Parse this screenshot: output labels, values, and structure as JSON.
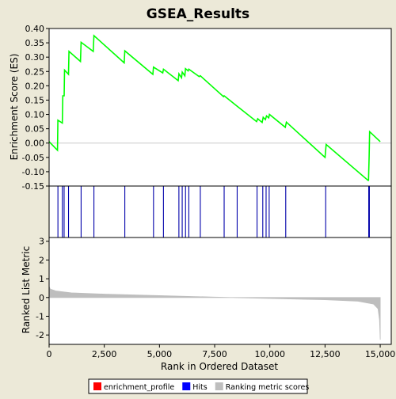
{
  "chart_data": {
    "type": "line",
    "title": "GSEA_Results",
    "xlabel": "Rank in Ordered Dataset",
    "xlim": [
      0,
      15500
    ],
    "xticks": [
      0,
      2500,
      5000,
      7500,
      10000,
      12500,
      15000
    ],
    "xtick_labels": [
      "0",
      "2,500",
      "5,000",
      "7,500",
      "10,000",
      "12,500",
      "15,000"
    ],
    "panels": {
      "enrichment": {
        "ylabel": "Enrichment Score (ES)",
        "ylim": [
          -0.15,
          0.4
        ],
        "yticks": [
          -0.15,
          -0.1,
          -0.05,
          0.0,
          0.05,
          0.1,
          0.15,
          0.2,
          0.25,
          0.3,
          0.35,
          0.4
        ],
        "ytick_labels": [
          "-0.15",
          "-0.10",
          "-0.05",
          "0.00",
          "0.05",
          "0.10",
          "0.15",
          "0.20",
          "0.25",
          "0.30",
          "0.35",
          "0.40"
        ],
        "x": [
          0,
          380,
          400,
          600,
          620,
          680,
          700,
          880,
          900,
          1420,
          1450,
          2000,
          2030,
          3400,
          3430,
          4700,
          4730,
          5150,
          5180,
          5850,
          5880,
          6000,
          6030,
          6150,
          6180,
          6300,
          6330,
          6800,
          6850,
          7900,
          7930,
          8500,
          9400,
          9450,
          9650,
          9700,
          9800,
          9850,
          9950,
          9980,
          10700,
          10750,
          12500,
          12550,
          14450,
          14470,
          14500,
          14520,
          15000
        ],
        "y": [
          0.005,
          -0.025,
          0.08,
          0.07,
          0.165,
          0.165,
          0.255,
          0.24,
          0.32,
          0.285,
          0.352,
          0.32,
          0.375,
          0.28,
          0.322,
          0.24,
          0.265,
          0.245,
          0.258,
          0.218,
          0.242,
          0.228,
          0.248,
          0.235,
          0.26,
          0.252,
          0.258,
          0.232,
          0.235,
          0.162,
          0.165,
          0.13,
          0.075,
          0.085,
          0.072,
          0.09,
          0.082,
          0.095,
          0.088,
          0.1,
          0.055,
          0.073,
          -0.05,
          -0.005,
          -0.13,
          -0.13,
          -0.045,
          0.04,
          0.005
        ]
      },
      "hits": {
        "positions": [
          400,
          600,
          680,
          880,
          1450,
          2030,
          3430,
          4730,
          5180,
          5880,
          6030,
          6180,
          6330,
          6850,
          7930,
          8520,
          9420,
          9680,
          9830,
          9970,
          10720,
          12530,
          14480,
          14510
        ]
      },
      "ranked_metric": {
        "ylabel": "Ranked List Metric",
        "ylim": [
          -2.5,
          3.2
        ],
        "yticks": [
          -2,
          -1,
          0,
          1,
          2,
          3
        ],
        "ytick_labels": [
          "-2",
          "-1",
          "0",
          "1",
          "2",
          "3"
        ],
        "x": [
          0,
          50,
          300,
          1000,
          2500,
          5000,
          7500,
          10000,
          12500,
          14000,
          14700,
          14900,
          14970,
          15000
        ],
        "y": [
          0.6,
          0.45,
          0.35,
          0.25,
          0.18,
          0.1,
          0.02,
          -0.05,
          -0.12,
          -0.2,
          -0.35,
          -0.6,
          -1.2,
          -2.25
        ]
      }
    },
    "legend": {
      "placement": "bottom-center",
      "entries": [
        {
          "label": "enrichment_profile",
          "color": "#FF0000"
        },
        {
          "label": "Hits",
          "color": "#0000FF"
        },
        {
          "label": "Ranking metric scores",
          "color": "#BEBEBE"
        }
      ]
    },
    "colors": {
      "enrichment_line": "#00FF00",
      "hit_line": "#0000AA",
      "metric_fill": "#BEBEBE",
      "background": "#ECE9D8",
      "plot_background": "#FFFFFF"
    }
  }
}
